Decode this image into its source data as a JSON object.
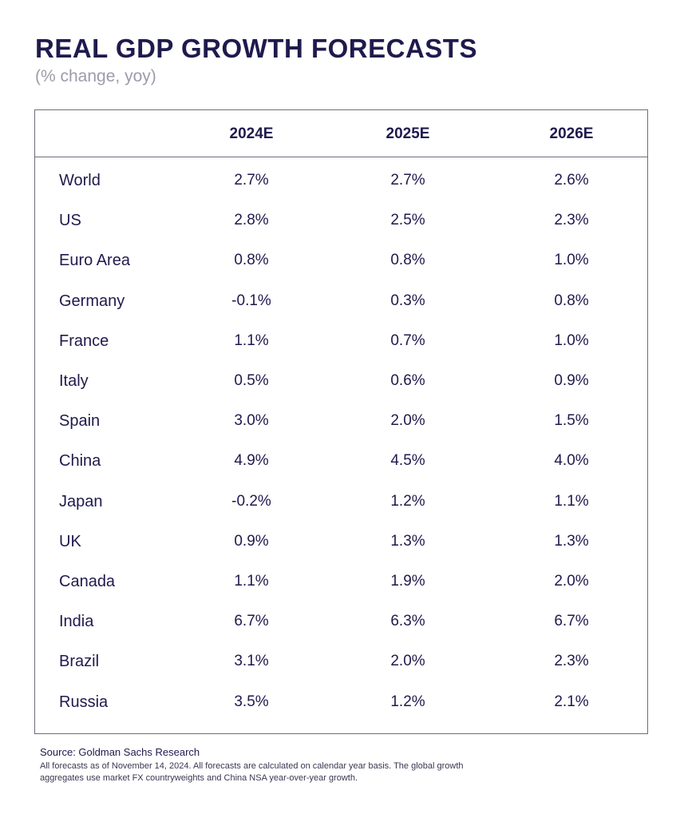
{
  "title": "REAL GDP GROWTH FORECASTS",
  "subtitle": "(% change, yoy)",
  "source": "Source: Goldman Sachs Research",
  "note": "All forecasts as of November 14, 2024. All forecasts are calculated on calendar year basis. The global growth aggregates use market FX countryweights and China NSA year-over-year growth.",
  "chart_data": {
    "type": "table",
    "columns": [
      "2024E",
      "2025E",
      "2026E"
    ],
    "rows": [
      {
        "label": "World",
        "values": [
          "2.7%",
          "2.7%",
          "2.6%"
        ]
      },
      {
        "label": "US",
        "values": [
          "2.8%",
          "2.5%",
          "2.3%"
        ]
      },
      {
        "label": "Euro Area",
        "values": [
          "0.8%",
          "0.8%",
          "1.0%"
        ]
      },
      {
        "label": "Germany",
        "values": [
          "-0.1%",
          "0.3%",
          "0.8%"
        ]
      },
      {
        "label": "France",
        "values": [
          "1.1%",
          "0.7%",
          "1.0%"
        ]
      },
      {
        "label": "Italy",
        "values": [
          "0.5%",
          "0.6%",
          "0.9%"
        ]
      },
      {
        "label": "Spain",
        "values": [
          "3.0%",
          "2.0%",
          "1.5%"
        ]
      },
      {
        "label": "China",
        "values": [
          "4.9%",
          "4.5%",
          "4.0%"
        ]
      },
      {
        "label": "Japan",
        "values": [
          "-0.2%",
          "1.2%",
          "1.1%"
        ]
      },
      {
        "label": "UK",
        "values": [
          "0.9%",
          "1.3%",
          "1.3%"
        ]
      },
      {
        "label": "Canada",
        "values": [
          "1.1%",
          "1.9%",
          "2.0%"
        ]
      },
      {
        "label": "India",
        "values": [
          "6.7%",
          "6.3%",
          "6.7%"
        ]
      },
      {
        "label": "Brazil",
        "values": [
          "3.1%",
          "2.0%",
          "2.3%"
        ]
      },
      {
        "label": "Russia",
        "values": [
          "3.5%",
          "1.2%",
          "2.1%"
        ]
      }
    ]
  }
}
